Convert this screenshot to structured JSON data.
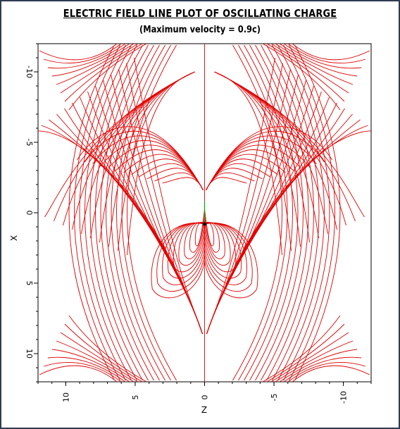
{
  "figure": {
    "title": "ELECTRIC FIELD LINE PLOT OF OSCILLATING CHARGE",
    "subtitle": "(Maximum velocity = 0.9c)"
  },
  "chart_data": {
    "type": "line",
    "title": "ELECTRIC FIELD LINE PLOT OF OSCILLATING CHARGE",
    "subtitle": "(Maximum velocity = 0.9c)",
    "xlabel": "Z",
    "ylabel": "X",
    "xlim": [
      12,
      -12
    ],
    "ylim": [
      -12,
      12
    ],
    "xticks": [
      "10",
      "5",
      "0",
      "-5",
      "-10"
    ],
    "yticks": [
      "-10",
      "-5",
      "0",
      "5",
      "10"
    ],
    "x_tick_values": [
      10,
      5,
      0,
      -5,
      -10
    ],
    "y_tick_values": [
      -10,
      -5,
      0,
      5,
      10
    ],
    "grid": false,
    "line_color": "#e00000",
    "motion_color": "#00b000",
    "charge_color": "#000000",
    "charge_position": [
      0,
      0.8
    ],
    "motion_segment": [
      [
        0,
        0.8
      ],
      [
        0,
        -0.8
      ]
    ]
  }
}
